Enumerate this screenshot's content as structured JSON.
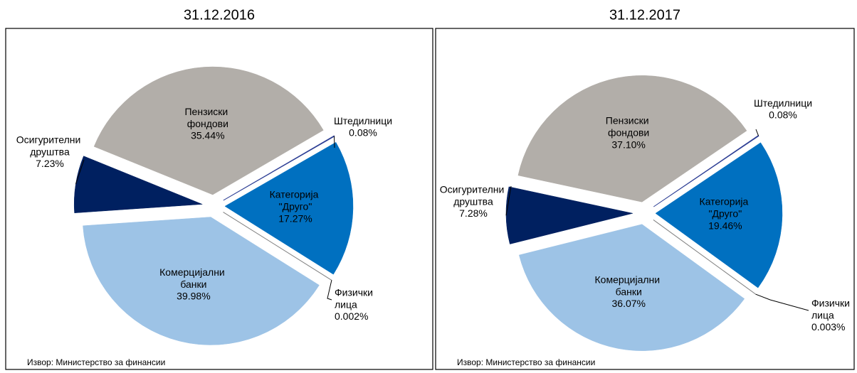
{
  "chart_data": [
    {
      "type": "pie",
      "title": "31.12.2016",
      "source": "Извор: Министерство за финансии",
      "categories": [
        "Категорија \"Друго\"",
        "Физички лица",
        "Комерцијални банки",
        "Осигурителни друштва",
        "Пензиски фондови",
        "Штедилници"
      ],
      "values": [
        17.27,
        0.002,
        39.98,
        7.23,
        35.44,
        0.08
      ],
      "value_labels": [
        "17.27%",
        "0.002%",
        "39.98%",
        "7.23%",
        "35.44%",
        "0.08%"
      ],
      "colors": [
        "#0070c0",
        "#7f7f7f",
        "#9dc3e6",
        "#002060",
        "#b2aea9",
        "#2e3f95"
      ]
    },
    {
      "type": "pie",
      "title": "31.12.2017",
      "source": "Извор: Министерство за финансии",
      "categories": [
        "Категорија \"Друго\"",
        "Физички лица",
        "Комерцијални банки",
        "Осигурителни друштва",
        "Пензиски фондови",
        "Штедилници"
      ],
      "values": [
        19.46,
        0.003,
        36.07,
        7.28,
        37.1,
        0.08
      ],
      "value_labels": [
        "19.46%",
        "0.003%",
        "36.07%",
        "7.28%",
        "37.10%",
        "0.08%"
      ],
      "colors": [
        "#0070c0",
        "#7f7f7f",
        "#9dc3e6",
        "#002060",
        "#b2aea9",
        "#2e3f95"
      ]
    }
  ]
}
